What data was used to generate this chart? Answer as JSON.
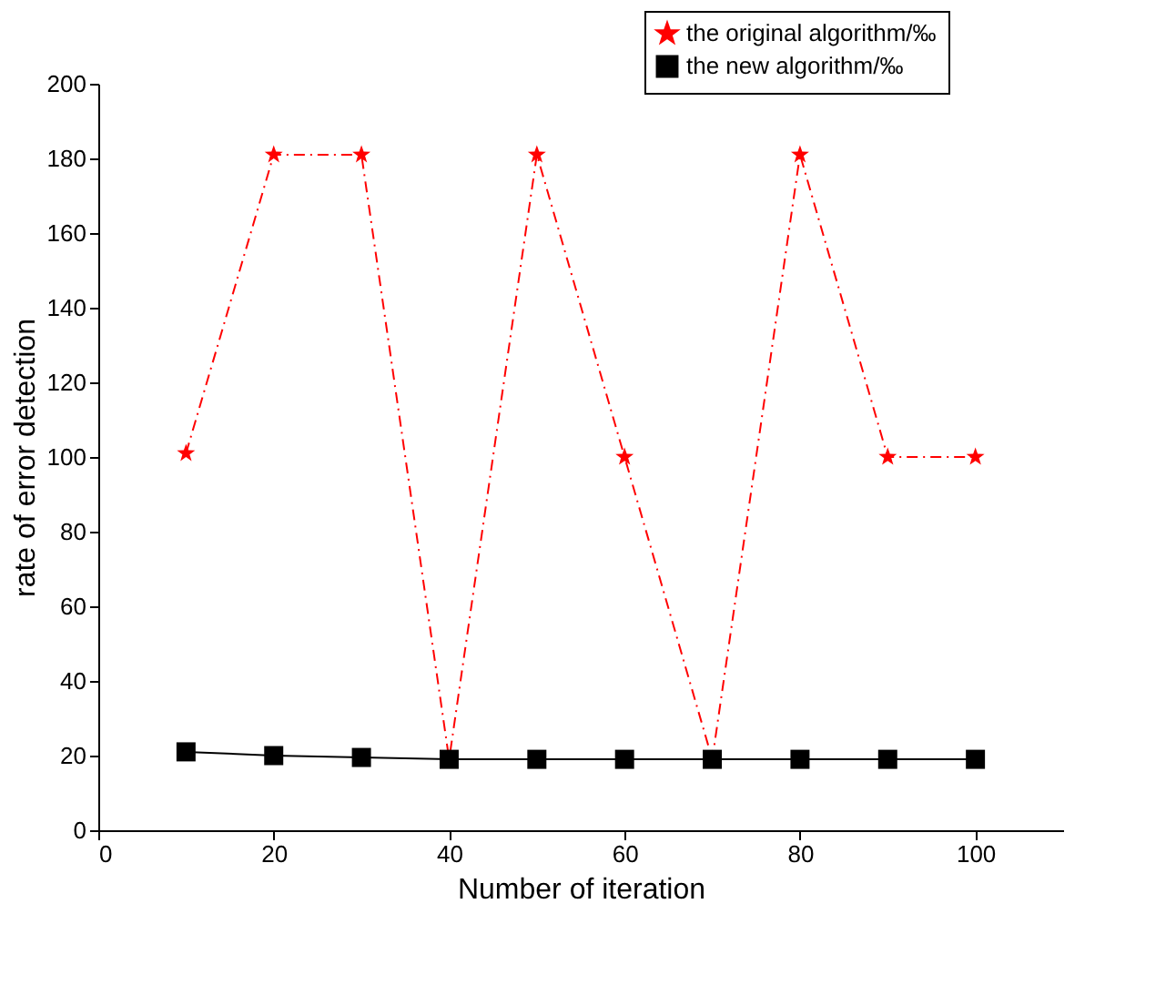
{
  "chart_data": {
    "type": "line",
    "xlabel": "Number of iteration",
    "ylabel": "rate of error detection",
    "x": [
      10,
      20,
      30,
      40,
      50,
      60,
      70,
      80,
      90,
      100
    ],
    "xlim": [
      0,
      110
    ],
    "xticks": [
      0,
      20,
      40,
      60,
      80,
      100
    ],
    "ylim": [
      0,
      200
    ],
    "yticks": [
      0,
      20,
      40,
      60,
      80,
      100,
      120,
      140,
      160,
      180,
      200
    ],
    "grid": false,
    "legend": "top right",
    "series": [
      {
        "name": "the original algorithm/‰",
        "color": "#ff0000",
        "marker": "star",
        "line_style": "dashed",
        "values": [
          101,
          181,
          181,
          19,
          181,
          100,
          19,
          181,
          100,
          100
        ]
      },
      {
        "name": "the new algorithm/‰",
        "color": "#000000",
        "marker": "square",
        "line_style": "solid",
        "values": [
          21,
          20,
          19.5,
          19,
          19,
          19,
          19,
          19,
          19,
          19
        ]
      }
    ]
  }
}
